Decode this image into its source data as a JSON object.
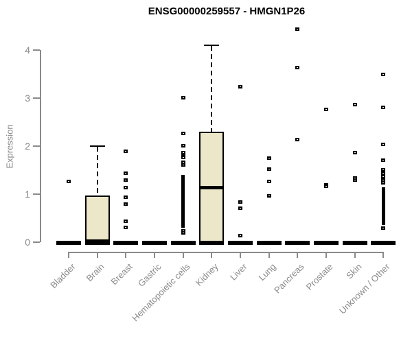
{
  "title": "ENSG00000259557 - HMGN1P26",
  "ylabel": "Expression",
  "chart_data": {
    "type": "boxplot",
    "title": "ENSG00000259557 - HMGN1P26",
    "xlabel": "",
    "ylabel": "Expression",
    "ylim": [
      0,
      4
    ],
    "yticks": [
      0,
      1,
      2,
      3,
      4
    ],
    "grid": false,
    "legend": "none",
    "colors": {
      "box_fill": "#ece7c9",
      "box_border": "#000000",
      "outlier": "#000000",
      "axis": "#8a8a8a",
      "title": "#000000"
    },
    "categories": [
      "Bladder",
      "Brain",
      "Breast",
      "Gastric",
      "Hematopoietic cells",
      "Kidney",
      "Liver",
      "Lung",
      "Pancreas",
      "Prostate",
      "Skin",
      "Unknown / Other"
    ],
    "boxes": [
      {
        "category": "Bladder",
        "zero_bar": true,
        "box": null,
        "outliers": [
          1.26
        ],
        "dense_ranges": []
      },
      {
        "category": "Brain",
        "zero_bar": true,
        "box": {
          "q1": 0,
          "median": 0.02,
          "q3": 0.97,
          "whisker_high": 2.02
        },
        "outliers": [],
        "dense_ranges": []
      },
      {
        "category": "Breast",
        "zero_bar": true,
        "box": null,
        "outliers": [
          1.89,
          1.44,
          1.29,
          1.14,
          0.93,
          0.8,
          0.44,
          0.31
        ],
        "dense_ranges": []
      },
      {
        "category": "Gastric",
        "zero_bar": true,
        "box": null,
        "outliers": [],
        "dense_ranges": []
      },
      {
        "category": "Hematopoietic cells",
        "zero_bar": true,
        "box": null,
        "outliers": [
          3.01,
          2.26,
          2.01,
          1.86,
          1.8,
          1.76,
          1.66,
          1.61,
          0.23,
          0.19
        ],
        "dense_ranges": [
          {
            "from": 0.3,
            "to": 1.4
          }
        ]
      },
      {
        "category": "Kidney",
        "zero_bar": true,
        "box": {
          "q1": 0,
          "median": 1.14,
          "q3": 2.3,
          "whisker_high": 4.11
        },
        "outliers": [],
        "dense_ranges": []
      },
      {
        "category": "Liver",
        "zero_bar": true,
        "box": null,
        "outliers": [
          3.23,
          0.83,
          0.71,
          0.14
        ],
        "dense_ranges": []
      },
      {
        "category": "Lung",
        "zero_bar": true,
        "box": null,
        "outliers": [
          1.75,
          1.52,
          1.26,
          0.97
        ],
        "dense_ranges": []
      },
      {
        "category": "Pancreas",
        "zero_bar": true,
        "box": null,
        "outliers": [
          4.44,
          3.63,
          2.13
        ],
        "dense_ranges": []
      },
      {
        "category": "Prostate",
        "zero_bar": true,
        "box": null,
        "outliers": [
          2.76,
          1.2,
          1.17
        ],
        "dense_ranges": []
      },
      {
        "category": "Skin",
        "zero_bar": true,
        "box": null,
        "outliers": [
          2.87,
          1.86,
          1.34,
          1.29
        ],
        "dense_ranges": []
      },
      {
        "category": "Unknown / Other",
        "zero_bar": true,
        "box": null,
        "outliers": [
          3.49,
          2.81,
          2.03,
          1.71,
          1.51,
          1.43,
          1.4,
          1.37,
          1.29,
          1.23,
          0.3
        ],
        "dense_ranges": [
          {
            "from": 0.36,
            "to": 1.14
          }
        ]
      }
    ]
  }
}
